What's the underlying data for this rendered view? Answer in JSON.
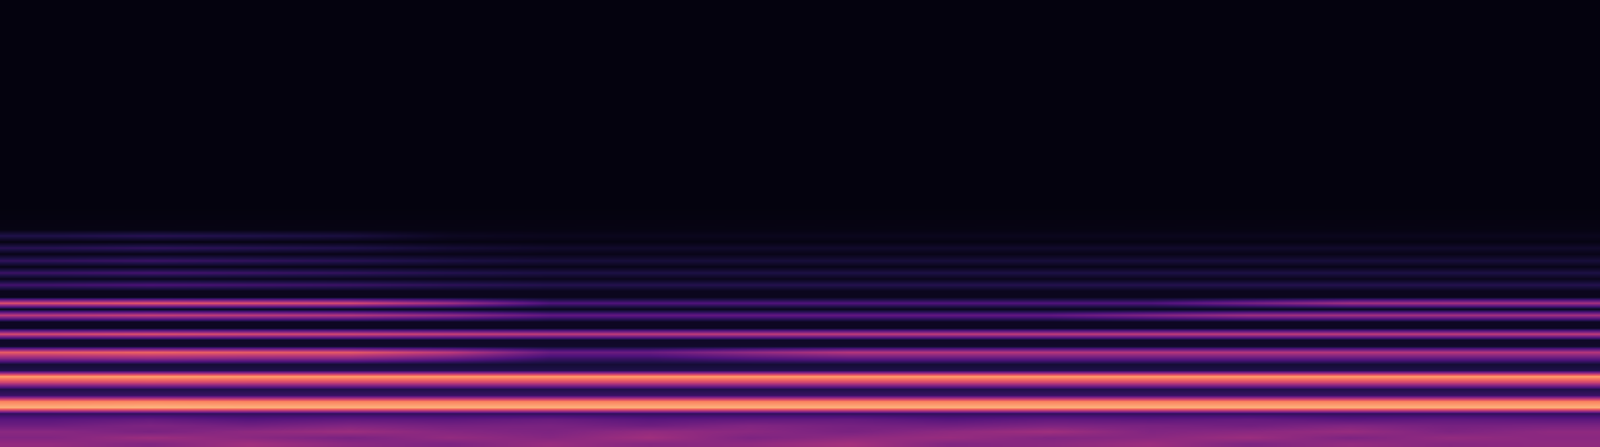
{
  "chart_data": {
    "type": "heatmap",
    "x": [
      0,
      1,
      2,
      3,
      4,
      5,
      6,
      7,
      8,
      9,
      10,
      11,
      12,
      13,
      14,
      15
    ],
    "y": [
      3,
      9,
      15,
      21,
      27,
      33,
      39,
      45,
      51,
      57,
      63,
      69,
      75,
      81,
      87,
      93,
      99,
      105,
      111,
      117,
      123,
      129,
      135,
      141,
      147,
      153,
      159,
      165,
      171,
      177,
      183,
      189,
      195,
      201,
      207,
      213,
      234,
      270,
      310,
      350,
      390,
      425
    ],
    "z": [
      [
        0.42,
        0.38,
        0.45,
        0.4,
        0.37,
        0.43,
        0.39,
        0.41,
        0.46,
        0.38,
        0.4,
        0.44,
        0.37,
        0.42,
        0.39,
        0.41
      ],
      [
        0.38,
        0.44,
        0.4,
        0.36,
        0.42,
        0.39,
        0.45,
        0.37,
        0.41,
        0.43,
        0.38,
        0.4,
        0.44,
        0.37,
        0.42,
        0.4
      ],
      [
        0.4,
        0.36,
        0.41,
        0.44,
        0.39,
        0.37,
        0.42,
        0.4,
        0.36,
        0.41,
        0.45,
        0.38,
        0.4,
        0.43,
        0.37,
        0.41
      ],
      [
        0.33,
        0.37,
        0.34,
        0.38,
        0.35,
        0.36,
        0.33,
        0.38,
        0.35,
        0.34,
        0.37,
        0.36,
        0.34,
        0.38,
        0.35,
        0.36
      ],
      [
        0.28,
        0.31,
        0.27,
        0.3,
        0.29,
        0.32,
        0.28,
        0.3,
        0.31,
        0.27,
        0.3,
        0.29,
        0.31,
        0.28,
        0.3,
        0.29
      ],
      [
        0.18,
        0.18,
        0.18,
        0.18,
        0.18,
        0.18,
        0.18,
        0.18,
        0.18,
        0.18,
        0.18,
        0.18,
        0.18,
        0.18,
        0.18,
        0.18
      ],
      [
        0.84,
        0.85,
        0.84,
        0.84,
        0.84,
        0.84,
        0.84,
        0.84,
        0.84,
        0.84,
        0.84,
        0.84,
        0.84,
        0.84,
        0.84,
        0.84
      ],
      [
        0.74,
        0.75,
        0.74,
        0.74,
        0.74,
        0.74,
        0.74,
        0.74,
        0.74,
        0.74,
        0.74,
        0.74,
        0.74,
        0.74,
        0.74,
        0.74
      ],
      [
        0.2,
        0.2,
        0.2,
        0.2,
        0.2,
        0.2,
        0.2,
        0.2,
        0.2,
        0.2,
        0.2,
        0.2,
        0.2,
        0.2,
        0.2,
        0.2
      ],
      [
        0.14,
        0.14,
        0.14,
        0.14,
        0.14,
        0.14,
        0.14,
        0.14,
        0.14,
        0.14,
        0.14,
        0.14,
        0.14,
        0.14,
        0.14,
        0.14
      ],
      [
        0.55,
        0.56,
        0.55,
        0.55,
        0.55,
        0.55,
        0.55,
        0.55,
        0.55,
        0.55,
        0.55,
        0.55,
        0.55,
        0.55,
        0.55,
        0.55
      ],
      [
        0.8,
        0.81,
        0.8,
        0.8,
        0.8,
        0.8,
        0.8,
        0.8,
        0.8,
        0.8,
        0.8,
        0.8,
        0.8,
        0.8,
        0.8,
        0.8
      ],
      [
        0.14,
        0.14,
        0.14,
        0.14,
        0.14,
        0.14,
        0.14,
        0.14,
        0.14,
        0.14,
        0.14,
        0.14,
        0.14,
        0.14,
        0.14,
        0.14
      ],
      [
        0.1,
        0.1,
        0.1,
        0.1,
        0.1,
        0.1,
        0.1,
        0.1,
        0.1,
        0.1,
        0.1,
        0.1,
        0.1,
        0.1,
        0.1,
        0.1
      ],
      [
        0.4,
        0.42,
        0.4,
        0.4,
        0.32,
        0.2,
        0.2,
        0.26,
        0.3,
        0.3,
        0.3,
        0.3,
        0.3,
        0.3,
        0.3,
        0.3
      ],
      [
        0.64,
        0.66,
        0.64,
        0.63,
        0.52,
        0.32,
        0.32,
        0.42,
        0.5,
        0.5,
        0.5,
        0.5,
        0.5,
        0.5,
        0.5,
        0.5
      ],
      [
        0.08,
        0.08,
        0.08,
        0.08,
        0.08,
        0.08,
        0.08,
        0.08,
        0.08,
        0.08,
        0.08,
        0.08,
        0.08,
        0.08,
        0.08,
        0.08
      ],
      [
        0.07,
        0.07,
        0.07,
        0.07,
        0.07,
        0.07,
        0.07,
        0.07,
        0.07,
        0.07,
        0.07,
        0.07,
        0.07,
        0.07,
        0.07,
        0.07
      ],
      [
        0.58,
        0.6,
        0.58,
        0.57,
        0.54,
        0.52,
        0.52,
        0.52,
        0.52,
        0.52,
        0.52,
        0.52,
        0.52,
        0.52,
        0.52,
        0.52
      ],
      [
        0.06,
        0.06,
        0.06,
        0.06,
        0.06,
        0.06,
        0.06,
        0.06,
        0.06,
        0.06,
        0.06,
        0.06,
        0.06,
        0.06,
        0.06,
        0.06
      ],
      [
        0.06,
        0.06,
        0.06,
        0.06,
        0.06,
        0.06,
        0.06,
        0.06,
        0.06,
        0.06,
        0.06,
        0.06,
        0.06,
        0.06,
        0.06,
        0.06
      ],
      [
        0.52,
        0.54,
        0.52,
        0.5,
        0.42,
        0.3,
        0.3,
        0.3,
        0.3,
        0.3,
        0.3,
        0.38,
        0.45,
        0.46,
        0.46,
        0.46
      ],
      [
        0.05,
        0.05,
        0.05,
        0.05,
        0.05,
        0.05,
        0.05,
        0.05,
        0.05,
        0.05,
        0.05,
        0.05,
        0.05,
        0.05,
        0.05,
        0.05
      ],
      [
        0.6,
        0.62,
        0.6,
        0.58,
        0.45,
        0.25,
        0.25,
        0.25,
        0.25,
        0.25,
        0.25,
        0.25,
        0.35,
        0.45,
        0.46,
        0.46
      ],
      [
        0.05,
        0.05,
        0.05,
        0.05,
        0.05,
        0.05,
        0.05,
        0.05,
        0.05,
        0.05,
        0.05,
        0.05,
        0.05,
        0.05,
        0.05,
        0.05
      ],
      [
        0.05,
        0.05,
        0.05,
        0.05,
        0.05,
        0.05,
        0.05,
        0.05,
        0.05,
        0.05,
        0.05,
        0.05,
        0.05,
        0.05,
        0.05,
        0.05
      ],
      [
        0.22,
        0.24,
        0.22,
        0.2,
        0.17,
        0.15,
        0.15,
        0.15,
        0.15,
        0.15,
        0.15,
        0.15,
        0.15,
        0.15,
        0.15,
        0.15
      ],
      [
        0.05,
        0.05,
        0.05,
        0.05,
        0.05,
        0.05,
        0.05,
        0.05,
        0.05,
        0.05,
        0.05,
        0.05,
        0.05,
        0.05,
        0.05,
        0.05
      ],
      [
        0.2,
        0.22,
        0.2,
        0.18,
        0.15,
        0.13,
        0.13,
        0.13,
        0.13,
        0.13,
        0.13,
        0.13,
        0.13,
        0.13,
        0.13,
        0.13
      ],
      [
        0.04,
        0.04,
        0.04,
        0.04,
        0.04,
        0.04,
        0.04,
        0.04,
        0.04,
        0.04,
        0.04,
        0.04,
        0.04,
        0.04,
        0.04,
        0.04
      ],
      [
        0.18,
        0.2,
        0.18,
        0.16,
        0.13,
        0.11,
        0.11,
        0.11,
        0.11,
        0.11,
        0.11,
        0.11,
        0.11,
        0.11,
        0.11,
        0.11
      ],
      [
        0.04,
        0.04,
        0.04,
        0.04,
        0.04,
        0.04,
        0.04,
        0.04,
        0.04,
        0.04,
        0.04,
        0.04,
        0.04,
        0.04,
        0.04,
        0.04
      ],
      [
        0.16,
        0.18,
        0.16,
        0.14,
        0.1,
        0.08,
        0.08,
        0.08,
        0.08,
        0.08,
        0.08,
        0.08,
        0.08,
        0.08,
        0.08,
        0.08
      ],
      [
        0.03,
        0.03,
        0.03,
        0.03,
        0.03,
        0.03,
        0.03,
        0.03,
        0.03,
        0.03,
        0.03,
        0.03,
        0.03,
        0.03,
        0.03,
        0.03
      ],
      [
        0.14,
        0.16,
        0.14,
        0.12,
        0.06,
        0.05,
        0.05,
        0.05,
        0.05,
        0.05,
        0.05,
        0.05,
        0.05,
        0.05,
        0.05,
        0.05
      ],
      [
        0.03,
        0.03,
        0.03,
        0.03,
        0.03,
        0.03,
        0.03,
        0.03,
        0.03,
        0.03,
        0.03,
        0.03,
        0.03,
        0.03,
        0.03,
        0.03
      ],
      [
        0.02,
        0.02,
        0.02,
        0.02,
        0.02,
        0.02,
        0.02,
        0.02,
        0.02,
        0.02,
        0.02,
        0.02,
        0.02,
        0.02,
        0.02,
        0.02
      ],
      [
        0.02,
        0.02,
        0.02,
        0.02,
        0.02,
        0.02,
        0.02,
        0.02,
        0.02,
        0.02,
        0.02,
        0.02,
        0.02,
        0.02,
        0.02,
        0.02
      ],
      [
        0.02,
        0.02,
        0.02,
        0.02,
        0.02,
        0.02,
        0.02,
        0.02,
        0.02,
        0.02,
        0.02,
        0.02,
        0.02,
        0.02,
        0.02,
        0.02
      ],
      [
        0.02,
        0.02,
        0.02,
        0.02,
        0.02,
        0.02,
        0.02,
        0.02,
        0.02,
        0.02,
        0.02,
        0.02,
        0.02,
        0.02,
        0.02,
        0.02
      ],
      [
        0.02,
        0.02,
        0.02,
        0.02,
        0.02,
        0.02,
        0.02,
        0.02,
        0.02,
        0.02,
        0.02,
        0.02,
        0.02,
        0.02,
        0.02,
        0.02
      ],
      [
        0.02,
        0.02,
        0.02,
        0.02,
        0.02,
        0.02,
        0.02,
        0.02,
        0.02,
        0.02,
        0.02,
        0.02,
        0.02,
        0.02,
        0.02,
        0.02
      ]
    ],
    "zlim": [
      0,
      1
    ],
    "xlim": [
      -0.5,
      15.5
    ],
    "ylim": [
      0,
      438
    ],
    "tick_labels": false
  }
}
